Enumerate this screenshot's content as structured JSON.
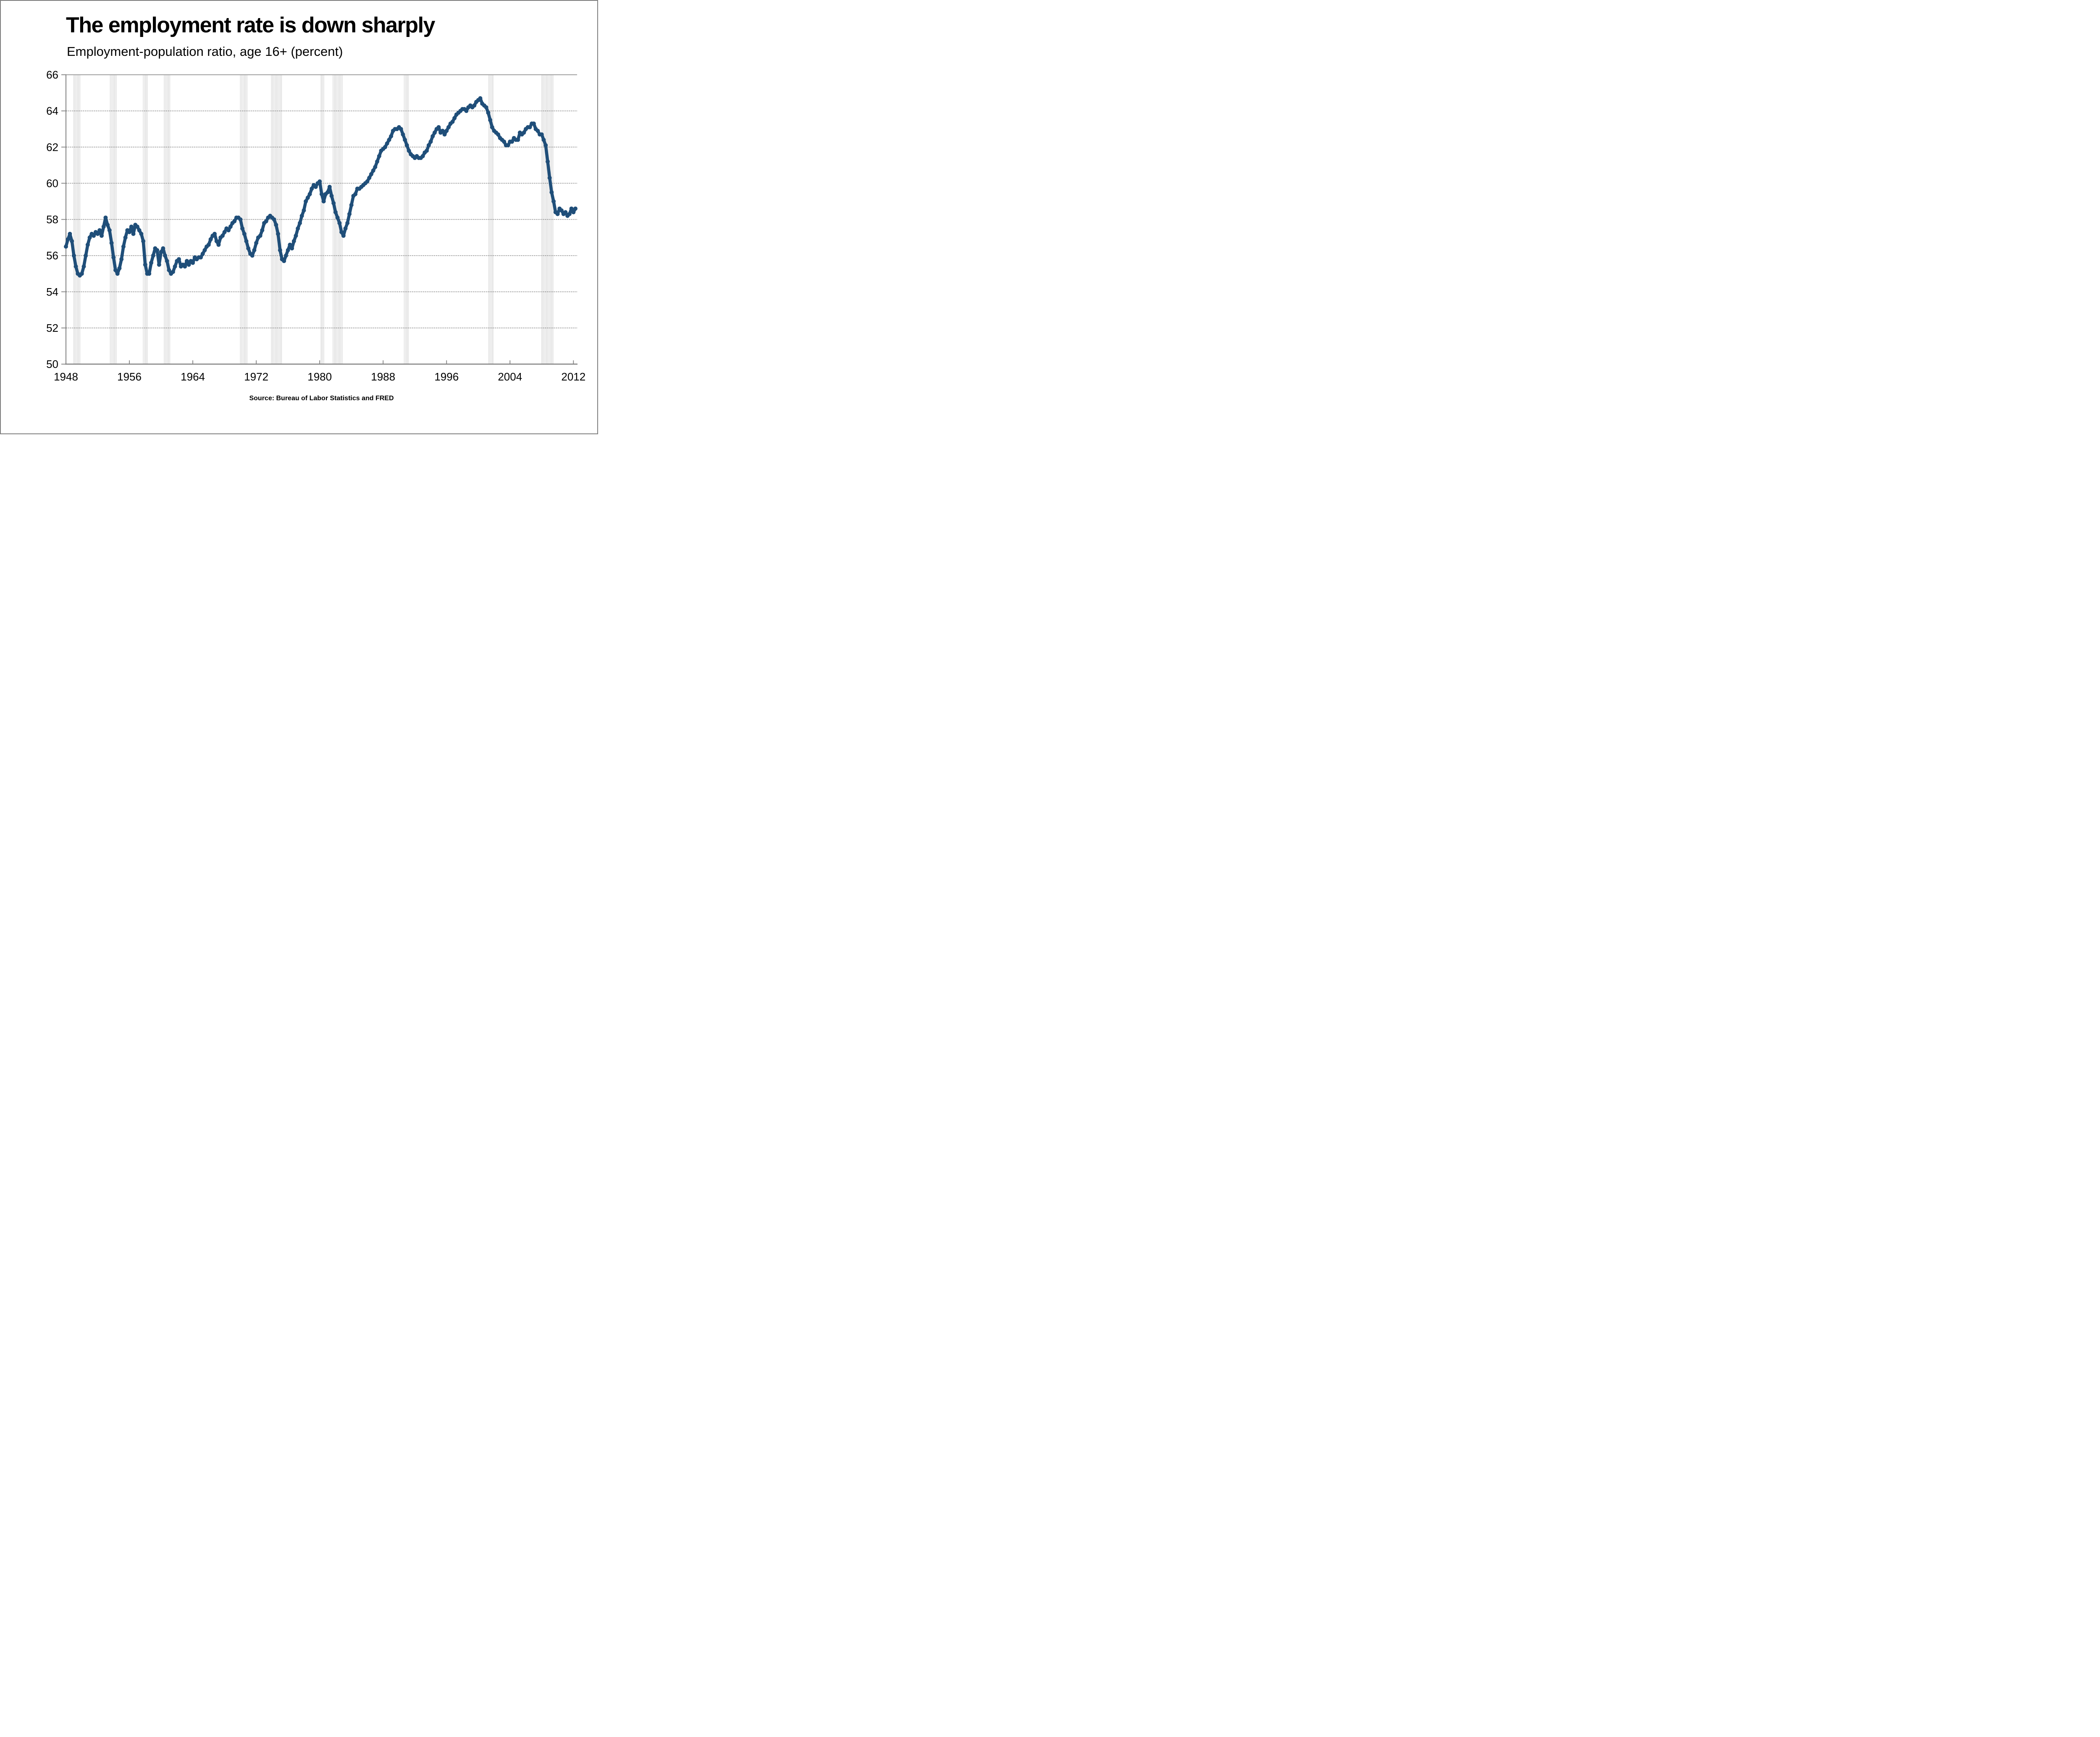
{
  "title": "The employment rate is down sharply",
  "subtitle": "Employment-population ratio, age 16+ (percent)",
  "source_note": "Source: Bureau of Labor Statistics and FRED",
  "colors": {
    "line": "#1F4E79",
    "grid": "#7F7F7F",
    "axis": "#808080",
    "recession_band": "#C9C9C9",
    "text": "#000000",
    "background": "#FFFFFF",
    "border": "#7F7F7F"
  },
  "chart_data": {
    "type": "line",
    "title": "The employment rate is down sharply",
    "subtitle": "Employment-population ratio, age 16+ (percent)",
    "xlabel": "",
    "ylabel": "",
    "xlim": [
      1948,
      2012.5
    ],
    "ylim": [
      50,
      66
    ],
    "xticks": [
      1948,
      1956,
      1964,
      1972,
      1980,
      1988,
      1996,
      2004,
      2012
    ],
    "yticks": [
      50,
      52,
      54,
      56,
      58,
      60,
      62,
      64,
      66
    ],
    "grid": "horizontal-dotted",
    "legend": "none",
    "recession_bands": [
      [
        1948.92,
        1949.83
      ],
      [
        1953.54,
        1954.42
      ],
      [
        1957.67,
        1958.33
      ],
      [
        1960.33,
        1961.17
      ],
      [
        1969.96,
        1970.92
      ],
      [
        1973.87,
        1975.25
      ],
      [
        1980.08,
        1980.58
      ],
      [
        1981.58,
        1982.92
      ],
      [
        1990.58,
        1991.25
      ],
      [
        2001.25,
        2001.92
      ],
      [
        2007.96,
        2009.5
      ]
    ],
    "series": [
      {
        "name": "Employment-population ratio, age 16+ (percent)",
        "frequency": "quarterly",
        "x_start": 1948.0,
        "x_step": 0.25,
        "values": [
          56.5,
          56.9,
          57.2,
          56.8,
          56.0,
          55.4,
          55.0,
          54.9,
          55.0,
          55.4,
          56.0,
          56.6,
          57.0,
          57.2,
          57.1,
          57.3,
          57.2,
          57.4,
          57.1,
          57.6,
          58.1,
          57.7,
          57.4,
          56.7,
          55.9,
          55.2,
          55.0,
          55.3,
          55.8,
          56.5,
          57.0,
          57.4,
          57.3,
          57.6,
          57.2,
          57.7,
          57.6,
          57.4,
          57.2,
          56.8,
          55.5,
          55.0,
          55.0,
          55.6,
          56.0,
          56.4,
          56.3,
          55.5,
          56.2,
          56.4,
          56.0,
          55.7,
          55.2,
          55.0,
          55.1,
          55.4,
          55.7,
          55.8,
          55.4,
          55.5,
          55.4,
          55.7,
          55.5,
          55.7,
          55.6,
          55.9,
          55.8,
          55.9,
          55.9,
          56.1,
          56.3,
          56.5,
          56.6,
          56.9,
          57.1,
          57.2,
          56.8,
          56.6,
          57.0,
          57.1,
          57.3,
          57.5,
          57.4,
          57.6,
          57.8,
          57.9,
          58.1,
          58.1,
          58.0,
          57.5,
          57.2,
          56.8,
          56.4,
          56.1,
          56.0,
          56.3,
          56.7,
          57.0,
          57.1,
          57.4,
          57.8,
          57.9,
          58.1,
          58.2,
          58.1,
          58.0,
          57.7,
          57.2,
          56.3,
          55.8,
          55.7,
          56.0,
          56.3,
          56.6,
          56.4,
          56.8,
          57.1,
          57.5,
          57.8,
          58.2,
          58.5,
          59.0,
          59.2,
          59.4,
          59.7,
          59.9,
          59.8,
          60.0,
          60.1,
          59.4,
          59.0,
          59.4,
          59.5,
          59.8,
          59.3,
          58.9,
          58.4,
          58.1,
          57.8,
          57.3,
          57.1,
          57.5,
          57.8,
          58.3,
          58.8,
          59.3,
          59.4,
          59.7,
          59.7,
          59.8,
          59.9,
          60.0,
          60.1,
          60.3,
          60.5,
          60.7,
          60.9,
          61.2,
          61.5,
          61.8,
          61.9,
          62.0,
          62.2,
          62.4,
          62.6,
          62.9,
          63.0,
          63.0,
          63.1,
          63.0,
          62.7,
          62.4,
          62.1,
          61.8,
          61.6,
          61.5,
          61.4,
          61.5,
          61.4,
          61.4,
          61.5,
          61.7,
          61.8,
          62.1,
          62.3,
          62.6,
          62.8,
          63.0,
          63.1,
          62.8,
          62.9,
          62.7,
          62.9,
          63.1,
          63.3,
          63.4,
          63.6,
          63.8,
          63.9,
          64.0,
          64.1,
          64.1,
          64.0,
          64.2,
          64.3,
          64.2,
          64.3,
          64.5,
          64.6,
          64.7,
          64.4,
          64.3,
          64.2,
          63.9,
          63.5,
          63.1,
          62.9,
          62.8,
          62.7,
          62.5,
          62.4,
          62.3,
          62.1,
          62.1,
          62.3,
          62.3,
          62.5,
          62.4,
          62.4,
          62.8,
          62.7,
          62.8,
          63.0,
          63.1,
          63.1,
          63.3,
          63.3,
          63.0,
          62.9,
          62.7,
          62.7,
          62.4,
          62.1,
          61.2,
          60.3,
          59.5,
          59.0,
          58.4,
          58.3,
          58.6,
          58.5,
          58.3,
          58.4,
          58.2,
          58.3,
          58.6,
          58.4,
          58.6
        ]
      }
    ]
  }
}
